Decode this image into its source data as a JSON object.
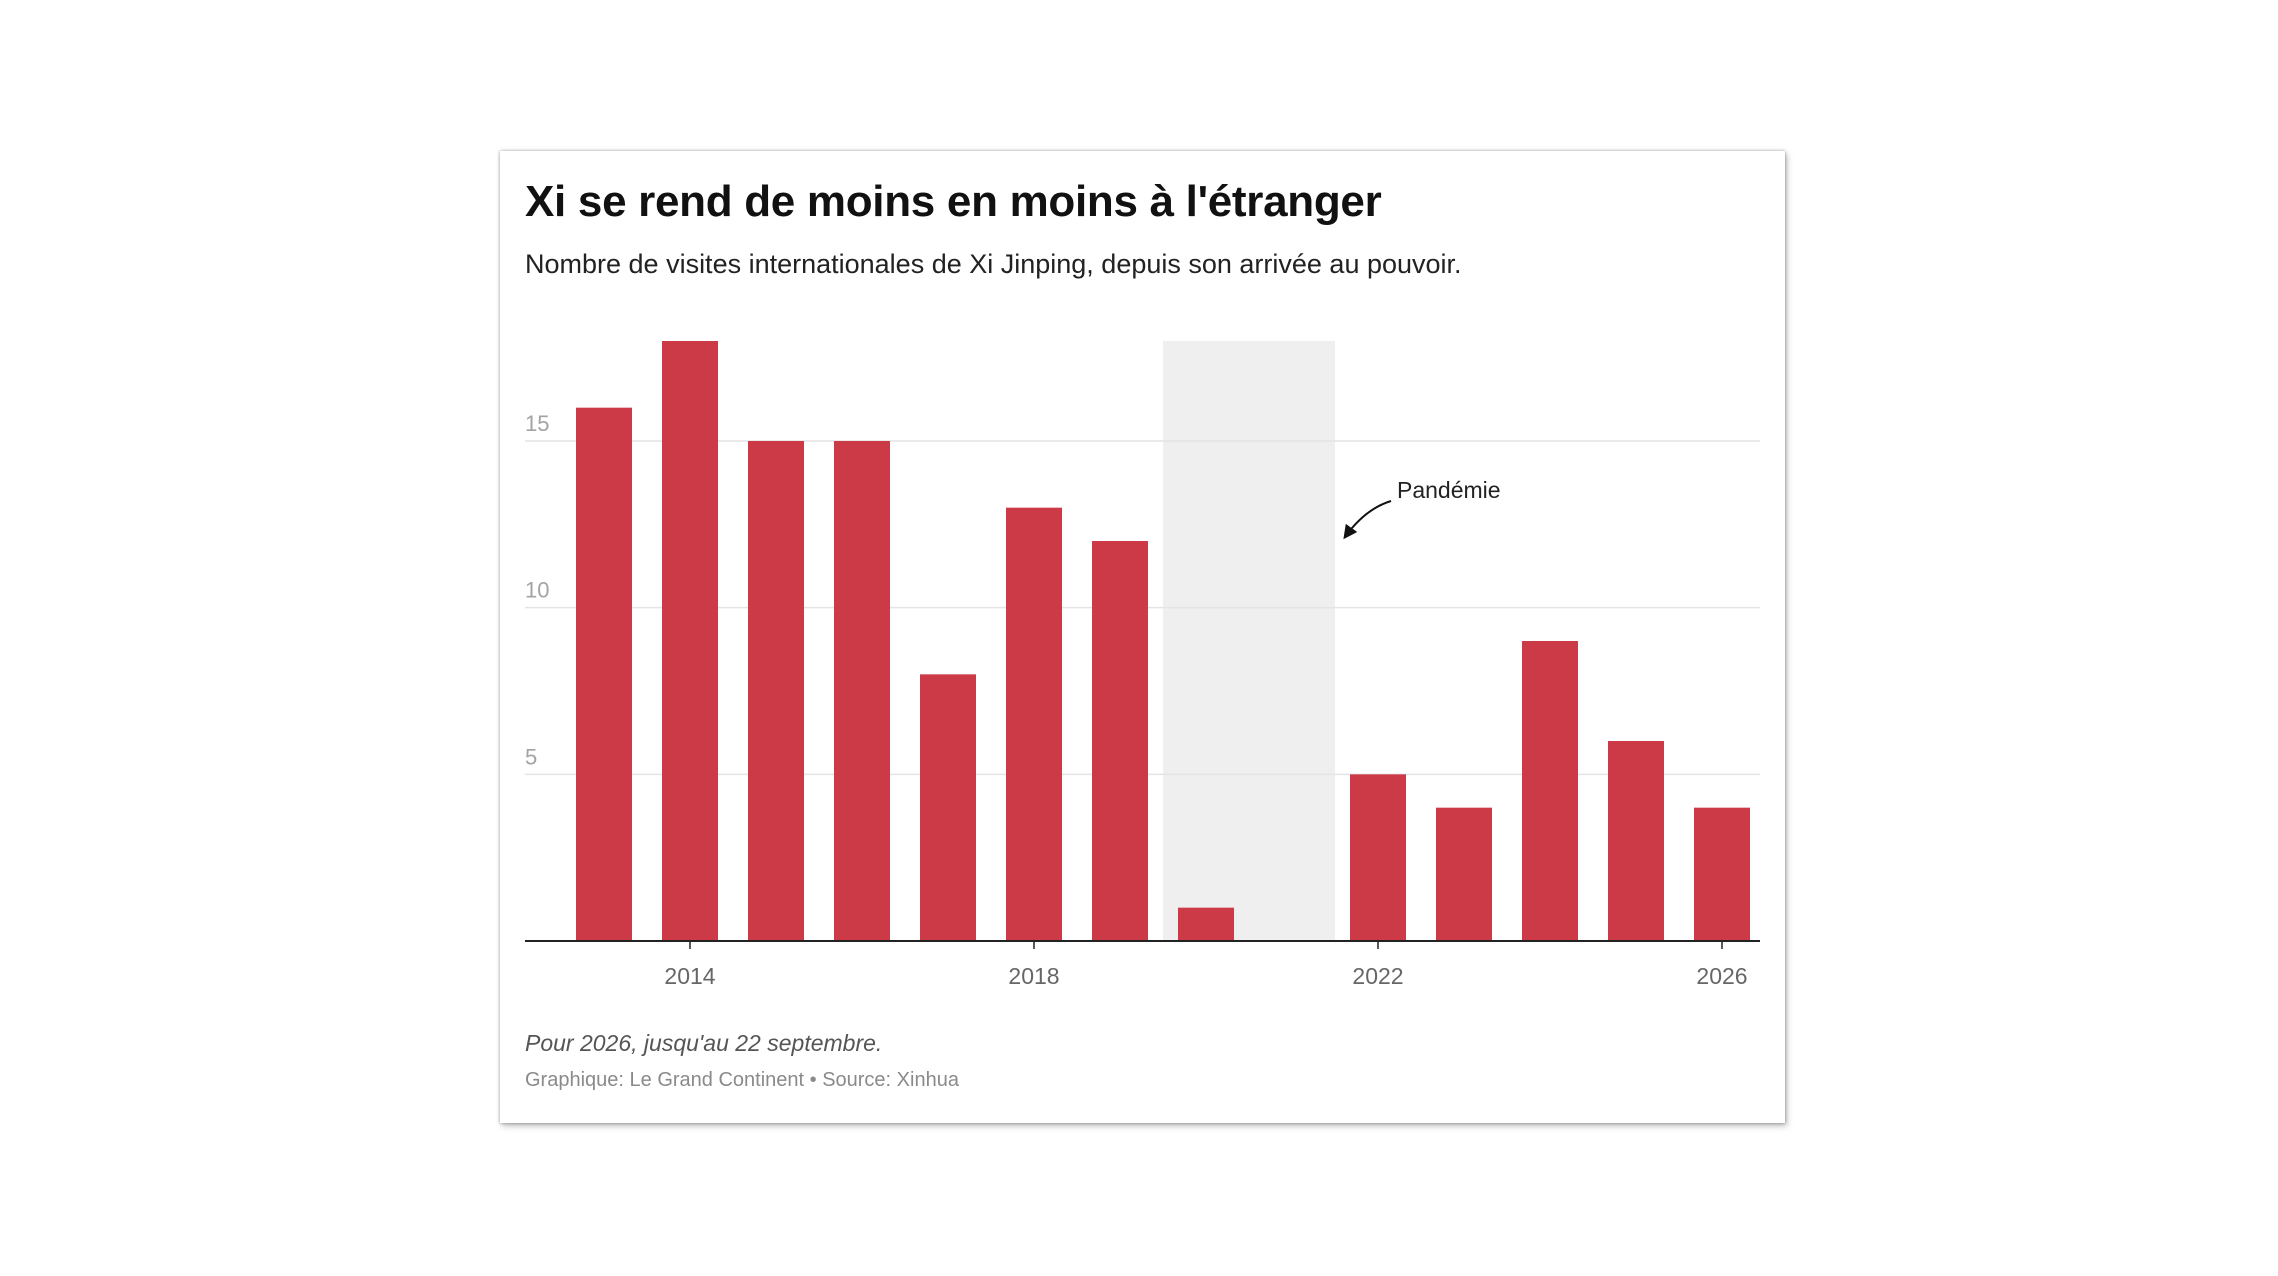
{
  "title": "Xi se rend de moins en moins à l'étranger",
  "subtitle": "Nombre de visites internationales de Xi Jinping, depuis son arrivée au pouvoir.",
  "note": "Pour 2026, jusqu'au 22 septembre.",
  "credit": "Graphique: Le Grand Continent • Source: Xinhua",
  "chart_data": {
    "type": "bar",
    "x": [
      2013,
      2014,
      2015,
      2016,
      2017,
      2018,
      2019,
      2020,
      2021,
      2022,
      2023,
      2024,
      2025,
      2026
    ],
    "values": [
      16,
      18,
      15,
      15,
      8,
      13,
      12,
      1,
      0,
      5,
      4,
      9,
      6,
      4
    ],
    "xticks": [
      "2014",
      "2018",
      "2022",
      "2026"
    ],
    "xtick_values": [
      2014,
      2018,
      2022,
      2026
    ],
    "yticks": [
      "5",
      "10",
      "15"
    ],
    "ytick_values": [
      5,
      10,
      15
    ],
    "ylim": [
      0,
      18
    ],
    "grid": true,
    "bar_color": "#cc3947",
    "highlight": {
      "label": "Pandémie",
      "x_start": 2020,
      "x_end": 2021,
      "color": "#efefef"
    }
  }
}
